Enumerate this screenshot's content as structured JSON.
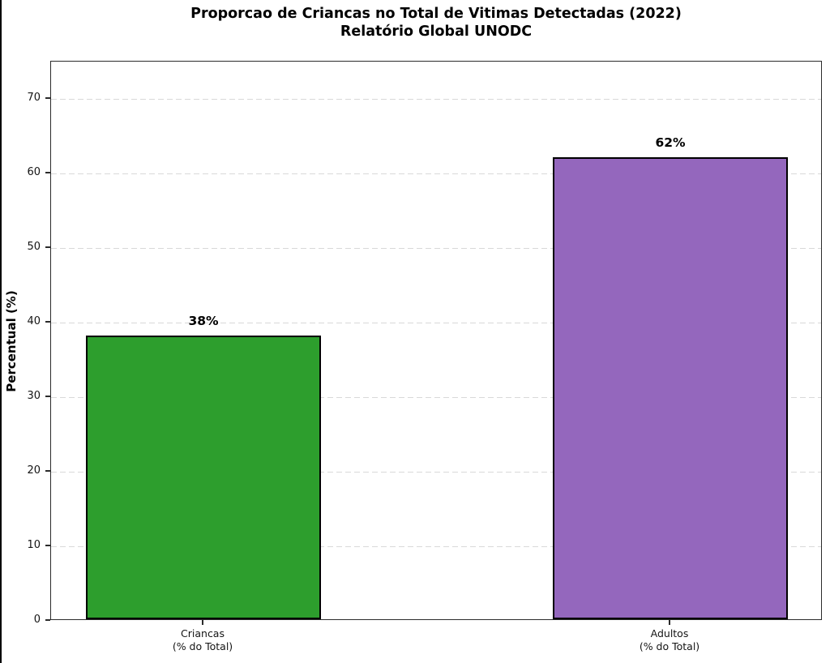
{
  "chart_data": {
    "type": "bar",
    "title": "Proporcao de Criancas no Total de Vitimas Detectadas (2022)",
    "subtitle": "Relatório Global UNODC",
    "ylabel": "Percentual (%)",
    "xlabel": "",
    "categories": [
      "Criancas",
      "Adultos"
    ],
    "category_sublabels": [
      "(% do Total)",
      "(% do Total)"
    ],
    "values": [
      38,
      62
    ],
    "value_labels": [
      "38%",
      "62%"
    ],
    "bar_colors": [
      "#2d9e2d",
      "#9467bd"
    ],
    "bar_edge_color": "#000000",
    "yticks": [
      0,
      10,
      20,
      30,
      40,
      50,
      60,
      70
    ],
    "ylim": [
      0,
      75
    ],
    "grid": "horizontal-dashed",
    "grid_color": "#d9d9d9",
    "legend": "none",
    "source_note": ""
  }
}
